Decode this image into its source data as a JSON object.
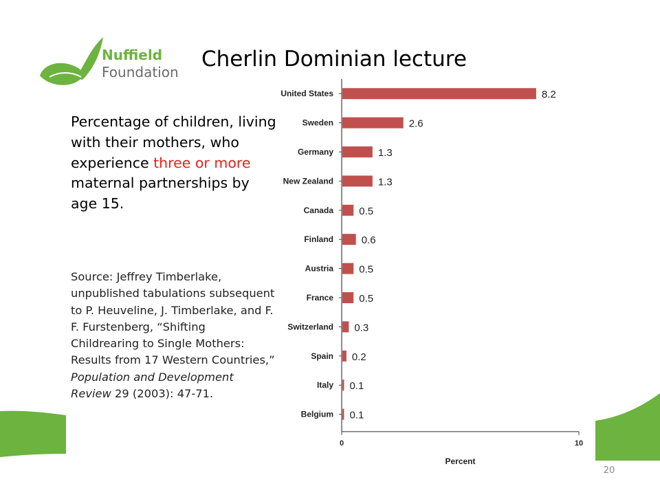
{
  "logo": {
    "line1": "Nuffield",
    "line2": "Foundation"
  },
  "slide": {
    "title": "Cherlin Dominian lecture",
    "description_before": "Percentage of children, living with their mothers, who experience ",
    "description_highlight": "three or more",
    "description_after": " maternal partnerships by age 15.",
    "source_pre": "Source: Jeffrey Timberlake, unpublished tabulations subsequent to P. Heuveline, J. Timberlake, and F. F. Furstenberg, “Shifting Childrearing to Single Mothers: Results from 17 Western Countries,” ",
    "source_journal": "Population and Development Review",
    "source_post": " 29 (2003): 47-71.",
    "page_number": "20"
  },
  "colors": {
    "brand_green": "#6db33f",
    "bar": "#c0504d",
    "highlight": "#e8211b"
  },
  "chart_data": {
    "type": "bar",
    "orientation": "horizontal",
    "categories": [
      "United States",
      "Sweden",
      "Germany",
      "New Zealand",
      "Canada",
      "Finland",
      "Austria",
      "France",
      "Switzerland",
      "Spain",
      "Italy",
      "Belgium"
    ],
    "values": [
      8.2,
      2.6,
      1.3,
      1.3,
      0.5,
      0.6,
      0.5,
      0.5,
      0.3,
      0.2,
      0.1,
      0.1
    ],
    "data_labels": [
      "8.2",
      "2.6",
      "1.3",
      "1.3",
      "0.5",
      "0.6",
      "0.5",
      "0.5",
      "0.3",
      "0.2",
      "0.1",
      "0.1"
    ],
    "xlabel": "Percent",
    "xlim": [
      0,
      10
    ],
    "xticks": [
      0,
      10
    ],
    "grid": false
  }
}
